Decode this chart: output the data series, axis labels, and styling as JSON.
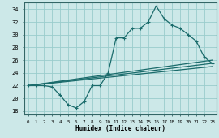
{
  "xlabel": "Humidex (Indice chaleur)",
  "background_color": "#cce8e8",
  "grid_color": "#99cccc",
  "line_color": "#1a6b6b",
  "xlim": [
    -0.5,
    23.5
  ],
  "ylim": [
    17.5,
    35.0
  ],
  "xticks": [
    0,
    1,
    2,
    3,
    4,
    5,
    6,
    7,
    8,
    9,
    10,
    11,
    12,
    13,
    14,
    15,
    16,
    17,
    18,
    19,
    20,
    21,
    22,
    23
  ],
  "yticks": [
    18,
    20,
    22,
    24,
    26,
    28,
    30,
    32,
    34
  ],
  "line1_x": [
    0,
    1,
    2,
    3,
    4,
    5,
    6,
    7,
    8,
    9,
    10,
    11,
    12,
    13,
    14,
    15,
    16,
    17,
    18,
    19,
    20,
    21,
    22,
    23
  ],
  "line1_y": [
    22,
    22,
    22,
    21.8,
    20.5,
    19,
    18.5,
    19.5,
    22,
    22,
    24,
    29.5,
    29.5,
    31,
    31,
    32,
    34.5,
    32.5,
    31.5,
    31,
    30,
    29,
    26.5,
    25.5
  ],
  "line2_x": [
    0,
    23
  ],
  "line2_y": [
    22,
    26.0
  ],
  "line3_x": [
    0,
    23
  ],
  "line3_y": [
    22,
    25.5
  ],
  "line4_x": [
    0,
    23
  ],
  "line4_y": [
    22,
    25.0
  ]
}
